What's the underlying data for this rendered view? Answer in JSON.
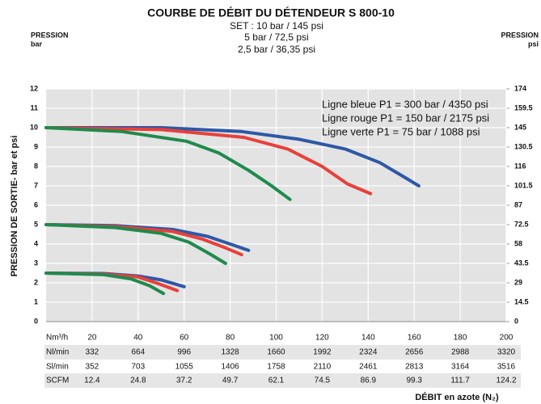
{
  "chart_data": {
    "type": "line",
    "title": "COURBE DE DÉBIT DU DÉTENDEUR S 800-10",
    "subtitle": [
      "SET : 10 bar / 145 psi",
      "5 bar / 72,5 psi",
      "2,5 bar / 36,35 psi"
    ],
    "left_axis_header": [
      "PRESSION",
      "bar"
    ],
    "right_axis_header": [
      "PRESSION",
      "psi"
    ],
    "y_label": "PRESSION DE SORTIE- bar et psi",
    "x_label": "DÉBIT en azote (N₂)",
    "x_unit": "Nm³/h",
    "annotations": [
      "Ligne bleue P1 = 300 bar / 4350 psi",
      "Ligne rouge P1 = 150 bar / 2175 psi",
      "Ligne verte P1 = 75 bar / 1088 psi"
    ],
    "xlim": [
      0,
      200
    ],
    "xticks": [
      20,
      40,
      60,
      80,
      100,
      120,
      140,
      160,
      180,
      200
    ],
    "ylim": [
      0,
      12
    ],
    "yticks": [
      0,
      1,
      2,
      3,
      4,
      5,
      6,
      7,
      8,
      9,
      10,
      11,
      12
    ],
    "y2lim": [
      0,
      174
    ],
    "y2ticks": [
      0,
      14.5,
      29,
      43.5,
      58,
      72.5,
      87,
      101.5,
      116,
      130.5,
      145,
      159.5,
      174
    ],
    "grid": true,
    "series": [
      {
        "color": "#2e58a6",
        "x": [
          0,
          50,
          85,
          110,
          130,
          145,
          155,
          162
        ],
        "values": [
          10,
          10,
          9.8,
          9.4,
          8.9,
          8.2,
          7.5,
          7.0
        ]
      },
      {
        "color": "#e8403a",
        "x": [
          0,
          50,
          86,
          105,
          120,
          131,
          141
        ],
        "values": [
          10,
          9.9,
          9.5,
          8.9,
          8.0,
          7.1,
          6.6
        ]
      },
      {
        "color": "#1f8a4c",
        "x": [
          0,
          33,
          61,
          75,
          88,
          98,
          106
        ],
        "values": [
          10,
          9.8,
          9.3,
          8.7,
          7.8,
          7.0,
          6.3
        ]
      },
      {
        "color": "#2e58a6",
        "x": [
          0,
          30,
          55,
          70,
          80,
          88
        ],
        "values": [
          5,
          4.95,
          4.75,
          4.4,
          4.0,
          3.67
        ]
      },
      {
        "color": "#e8403a",
        "x": [
          0,
          30,
          55,
          68,
          78,
          85
        ],
        "values": [
          5,
          4.9,
          4.65,
          4.25,
          3.8,
          3.45
        ]
      },
      {
        "color": "#1f8a4c",
        "x": [
          0,
          30,
          50,
          62,
          71,
          78
        ],
        "values": [
          5,
          4.85,
          4.55,
          4.1,
          3.5,
          3.0
        ]
      },
      {
        "color": "#2e58a6",
        "x": [
          0,
          25,
          40,
          50,
          60
        ],
        "values": [
          2.5,
          2.48,
          2.35,
          2.15,
          1.8
        ]
      },
      {
        "color": "#e8403a",
        "x": [
          0,
          25,
          40,
          49,
          57
        ],
        "values": [
          2.5,
          2.45,
          2.3,
          1.95,
          1.6
        ]
      },
      {
        "color": "#1f8a4c",
        "x": [
          0,
          25,
          37,
          45,
          51
        ],
        "values": [
          2.5,
          2.42,
          2.2,
          1.85,
          1.45
        ]
      }
    ],
    "conversion": [
      {
        "label": "Nl/min",
        "values": [
          332,
          664,
          996,
          1328,
          1660,
          1992,
          2324,
          2656,
          2988,
          3320
        ]
      },
      {
        "label": "Sl/min",
        "values": [
          352,
          703,
          1055,
          1406,
          1758,
          2110,
          2461,
          2813,
          3164,
          3516
        ]
      },
      {
        "label": "SCFM",
        "values": [
          12.4,
          24.8,
          37.2,
          49.7,
          62.1,
          74.5,
          86.9,
          99.3,
          111.7,
          124.2
        ]
      }
    ]
  }
}
